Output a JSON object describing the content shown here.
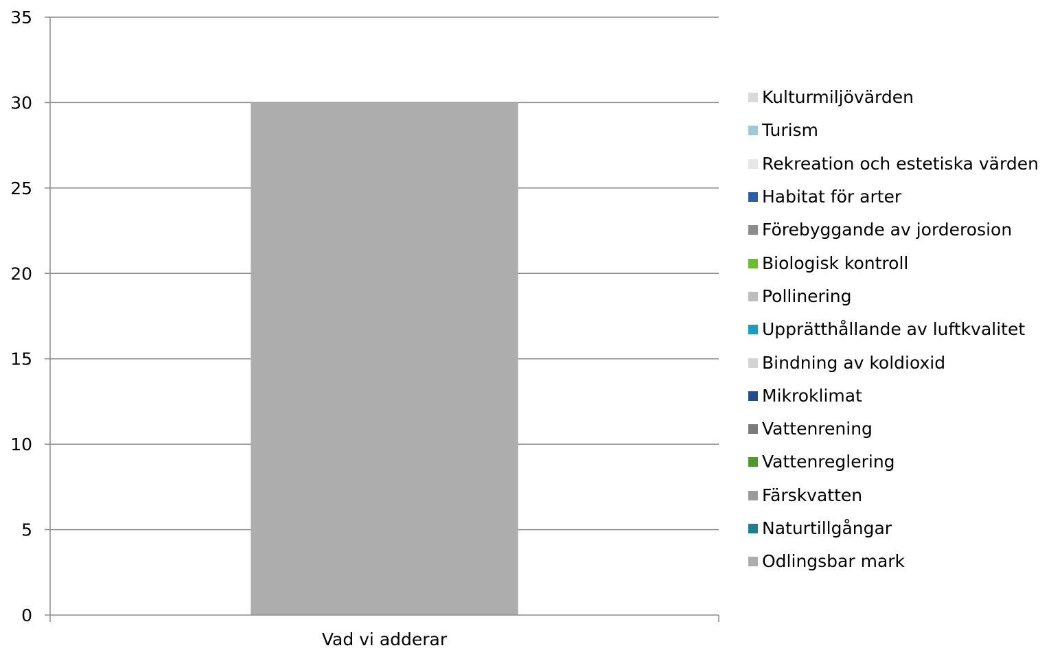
{
  "chart_data": {
    "type": "bar",
    "stacked": true,
    "categories": [
      "Vad vi adderar"
    ],
    "series": [
      {
        "name": "Odlingsbar mark",
        "values": [
          30
        ],
        "color": "#adadad"
      },
      {
        "name": "Naturtillgångar",
        "values": [
          0
        ],
        "color": "#1a7f8f"
      },
      {
        "name": "Färskvatten",
        "values": [
          0
        ],
        "color": "#9a9a9a"
      },
      {
        "name": "Vattenreglering",
        "values": [
          0
        ],
        "color": "#4d9a26"
      },
      {
        "name": "Vattenrening",
        "values": [
          0
        ],
        "color": "#7a7a7a"
      },
      {
        "name": "Mikroklimat",
        "values": [
          0
        ],
        "color": "#224c8a"
      },
      {
        "name": "Bindning av koldioxid",
        "values": [
          0
        ],
        "color": "#d3d3d3"
      },
      {
        "name": "Upprätthållande av luftkvalitet",
        "values": [
          0
        ],
        "color": "#179fc0"
      },
      {
        "name": "Pollinering",
        "values": [
          0
        ],
        "color": "#bdbdbd"
      },
      {
        "name": "Biologisk kontroll",
        "values": [
          0
        ],
        "color": "#6abf2e"
      },
      {
        "name": "Förebyggande av jorderosion",
        "values": [
          0
        ],
        "color": "#8c8c8c"
      },
      {
        "name": "Habitat för arter",
        "values": [
          0
        ],
        "color": "#2a5fa8"
      },
      {
        "name": "Rekreation och estetiska värden",
        "values": [
          0
        ],
        "color": "#e6e6e6"
      },
      {
        "name": "Turism",
        "values": [
          0
        ],
        "color": "#9cc8d8"
      },
      {
        "name": "Kulturmiljövärden",
        "values": [
          0
        ],
        "color": "#d9d9d9"
      }
    ],
    "ylim": [
      0,
      35
    ],
    "yticks": [
      0,
      5,
      10,
      15,
      20,
      25,
      30,
      35
    ],
    "grid": true,
    "legend_position": "right",
    "legend_order": "reversed",
    "title": "",
    "xlabel": "",
    "ylabel": ""
  }
}
